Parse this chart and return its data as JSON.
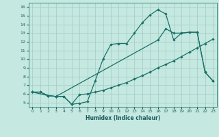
{
  "xlabel": "Humidex (Indice chaleur)",
  "xlim": [
    -0.5,
    23.5
  ],
  "ylim": [
    4.5,
    16.5
  ],
  "xticks": [
    0,
    1,
    2,
    3,
    4,
    5,
    6,
    7,
    8,
    9,
    10,
    11,
    12,
    13,
    14,
    15,
    16,
    17,
    18,
    19,
    20,
    21,
    22,
    23
  ],
  "yticks": [
    5,
    6,
    7,
    8,
    9,
    10,
    11,
    12,
    13,
    14,
    15,
    16
  ],
  "bg_color": "#c5e8e0",
  "grid_color": "#9dcdc4",
  "line_color": "#1a7068",
  "line1_x": [
    0,
    1,
    2,
    3,
    4,
    5,
    6,
    7,
    8,
    9,
    10,
    11,
    12,
    13,
    14,
    15,
    16,
    17,
    18,
    19,
    20,
    21,
    22,
    23
  ],
  "line1_y": [
    6.2,
    6.2,
    5.8,
    5.7,
    5.7,
    4.8,
    4.9,
    5.1,
    7.5,
    10.0,
    11.7,
    11.8,
    11.8,
    13.0,
    14.2,
    15.1,
    15.7,
    15.2,
    12.2,
    13.0,
    13.1,
    13.1,
    8.5,
    7.5
  ],
  "line2_x": [
    0,
    1,
    2,
    3,
    16,
    17,
    18,
    19,
    20,
    21,
    22,
    23
  ],
  "line2_y": [
    6.2,
    6.2,
    5.8,
    5.7,
    12.2,
    13.5,
    13.0,
    13.0,
    13.1,
    13.1,
    8.5,
    7.5
  ],
  "line3_x": [
    0,
    2,
    3,
    4,
    5,
    6,
    7,
    8,
    9,
    10,
    11,
    12,
    13,
    14,
    15,
    16,
    17,
    18,
    19,
    20,
    21,
    22,
    23
  ],
  "line3_y": [
    6.2,
    5.8,
    5.7,
    5.7,
    4.8,
    5.9,
    6.0,
    6.2,
    6.4,
    6.7,
    7.0,
    7.3,
    7.7,
    8.1,
    8.5,
    9.0,
    9.4,
    9.8,
    10.3,
    10.8,
    11.3,
    11.8,
    12.3
  ]
}
